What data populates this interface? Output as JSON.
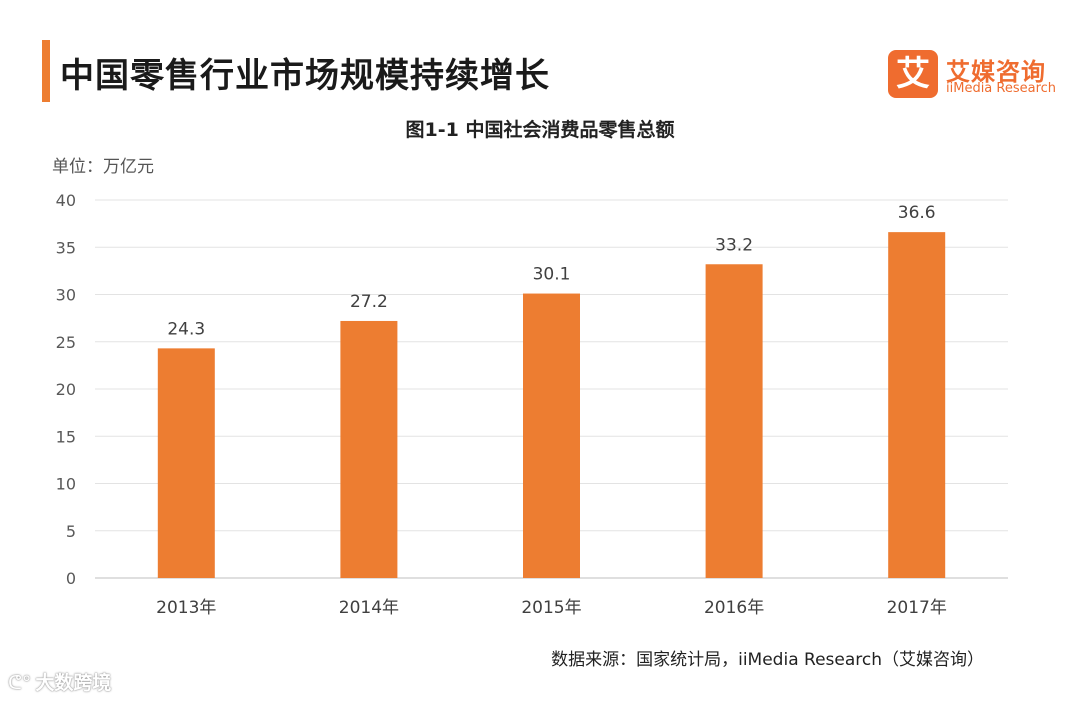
{
  "header": {
    "title": "中国零售行业市场规模持续增长",
    "logo_mark": "艾",
    "logo_cn": "艾媒咨询",
    "logo_en": "iiMedia Research"
  },
  "chart_data": {
    "type": "bar",
    "title": "图1-1 中国社会消费品零售总额",
    "unit_label": "单位：万亿元",
    "categories": [
      "2013年",
      "2014年",
      "2015年",
      "2016年",
      "2017年"
    ],
    "values": [
      24.3,
      27.2,
      30.1,
      33.2,
      36.6
    ],
    "value_labels": [
      "24.3",
      "27.2",
      "30.1",
      "33.2",
      "36.6"
    ],
    "yticks": [
      0,
      5,
      10,
      15,
      20,
      25,
      30,
      35,
      40
    ],
    "ylim": [
      0,
      40
    ],
    "xlabel": "",
    "ylabel": "",
    "grid": true,
    "bar_color": "#ed7d31"
  },
  "footer": {
    "source": "数据来源：国家统计局，iiMedia Research（艾媒咨询）",
    "watermark": "大数跨境",
    "watermark_icon": "weibo-icon"
  }
}
